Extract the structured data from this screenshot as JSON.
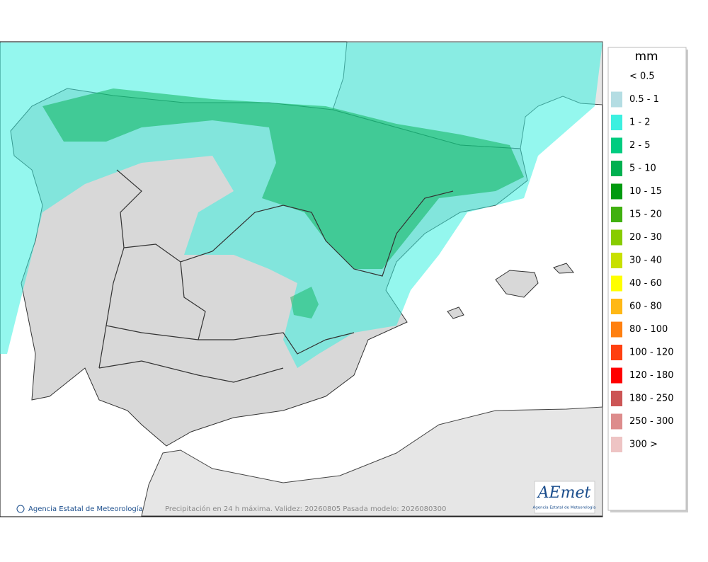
{
  "legend": {
    "title": "mm",
    "items": [
      {
        "label": "< 0.5"
      },
      {
        "label": "0.5 - 1",
        "color": "#b4dde3"
      },
      {
        "label": "1 - 2",
        "color": "#3cf0e0"
      },
      {
        "label": "2 - 5",
        "color": "#00cc80"
      },
      {
        "label": "5 - 10",
        "color": "#00b050"
      },
      {
        "label": "10 - 15",
        "color": "#009a10"
      },
      {
        "label": "15 - 20",
        "color": "#40b010"
      },
      {
        "label": "20 - 30",
        "color": "#88cc00"
      },
      {
        "label": "30 - 40",
        "color": "#c8e000"
      },
      {
        "label": "40 - 60",
        "color": "#ffff00"
      },
      {
        "label": "60 - 80",
        "color": "#ffb815"
      },
      {
        "label": "80 - 100",
        "color": "#ff8010"
      },
      {
        "label": "100 - 120",
        "color": "#ff4010"
      },
      {
        "label": "120 - 180",
        "color": "#ff0000"
      },
      {
        "label": "180 - 250",
        "color": "#cc5555"
      },
      {
        "label": "250 - 300",
        "color": "#dd8c8c"
      },
      {
        "label": "300 >",
        "color": "#eec4c4"
      }
    ]
  },
  "footer": {
    "credit": "Agencia Estatal de Meteorología",
    "caption": "Precipitación en 24 h máxima. Validez: 20260805 Pasada modelo: 2026080300"
  },
  "logo": {
    "name": "AEmet",
    "subtitle": "Agencia Estatal de Meteorología"
  }
}
